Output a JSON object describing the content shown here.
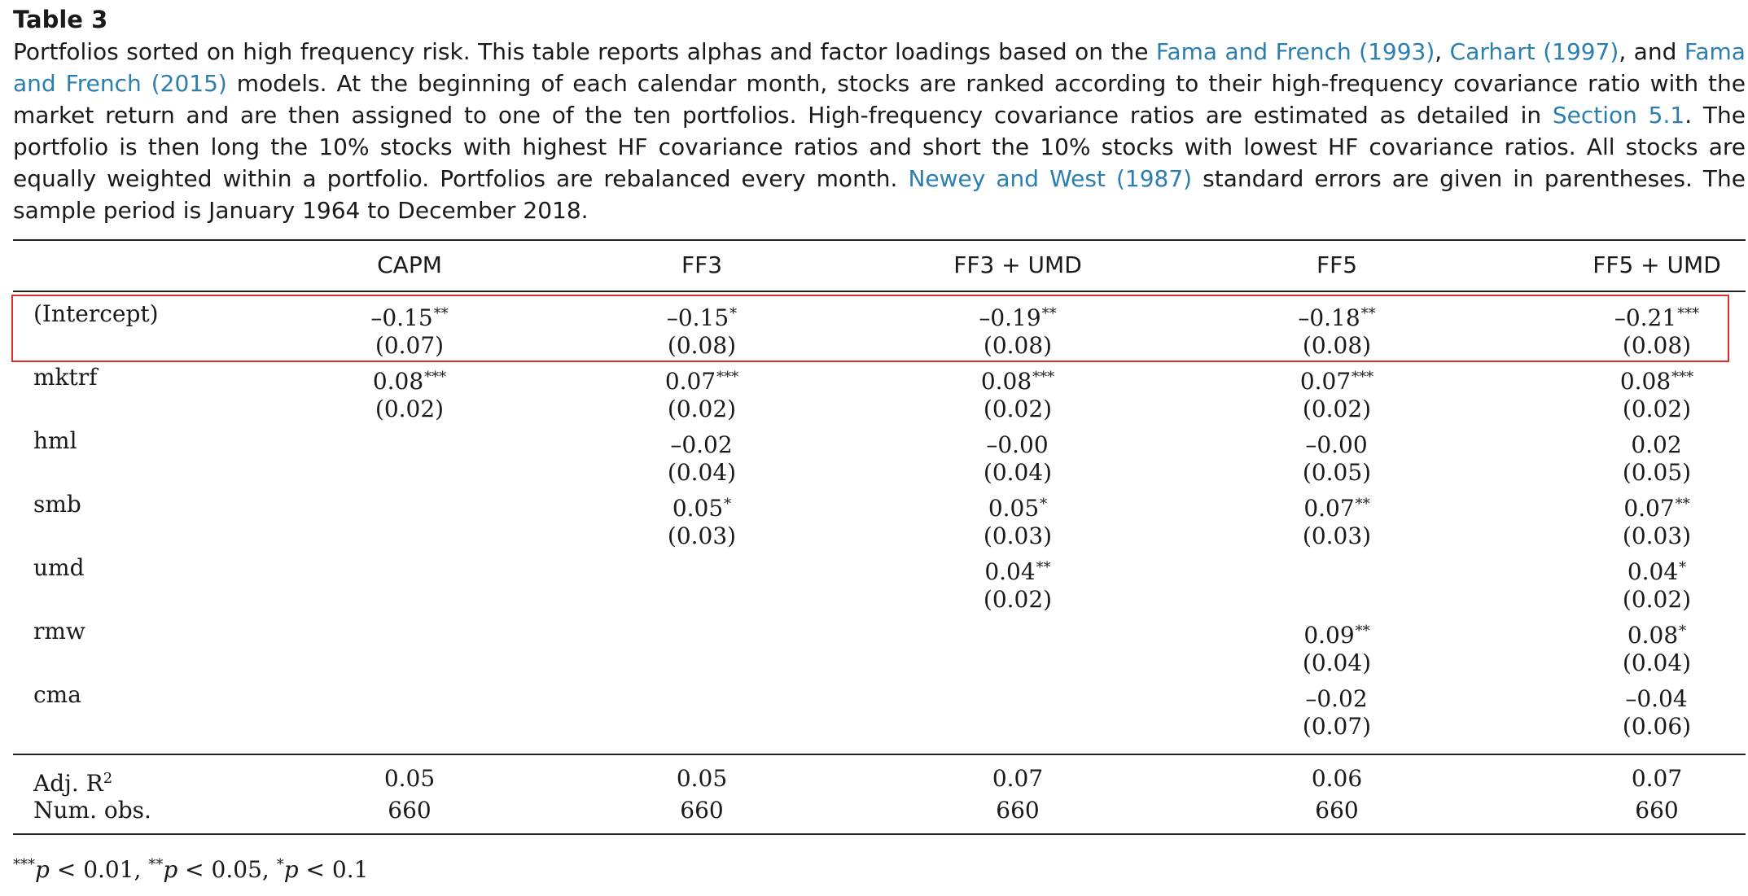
{
  "title": "Table 3",
  "caption": {
    "t1": "Portfolios sorted on high frequency risk. This table reports alphas and factor loadings based on the ",
    "l1": "Fama and French (1993)",
    "t2": ", ",
    "l2": "Carhart (1997)",
    "t3": ", and ",
    "l3": "Fama and French (2015)",
    "t4": " models. At the beginning of each calendar month, stocks are ranked according to their high-frequency covariance ratio with the market return and are then assigned to one of the ten portfolios. High-frequency covariance ratios are estimated as detailed in ",
    "l4": "Section 5.1",
    "t5": ". The portfolio is then long the 10% stocks with highest HF covariance ratios and short the 10% stocks with lowest HF covariance ratios. All stocks are equally weighted within a portfolio. Portfolios are rebalanced every month. ",
    "l5": "Newey and West (1987)",
    "t6": " standard errors are given in parentheses. The sample period is January 1964 to December 2018."
  },
  "columns": [
    "CAPM",
    "FF3",
    "FF3 + UMD",
    "FF5",
    "FF5 + UMD"
  ],
  "rows": [
    {
      "label": "(Intercept)",
      "est": [
        [
          "–0.15",
          "**"
        ],
        [
          "–0.15",
          "*"
        ],
        [
          "–0.19",
          "**"
        ],
        [
          "–0.18",
          "**"
        ],
        [
          "–0.21",
          "***"
        ]
      ],
      "se": [
        "(0.07)",
        "(0.08)",
        "(0.08)",
        "(0.08)",
        "(0.08)"
      ]
    },
    {
      "label": "mktrf",
      "est": [
        [
          "0.08",
          "***"
        ],
        [
          "0.07",
          "***"
        ],
        [
          "0.08",
          "***"
        ],
        [
          "0.07",
          "***"
        ],
        [
          "0.08",
          "***"
        ]
      ],
      "se": [
        "(0.02)",
        "(0.02)",
        "(0.02)",
        "(0.02)",
        "(0.02)"
      ]
    },
    {
      "label": "hml",
      "est": [
        [
          "",
          ""
        ],
        [
          "–0.02",
          ""
        ],
        [
          "–0.00",
          ""
        ],
        [
          "–0.00",
          ""
        ],
        [
          "0.02",
          ""
        ]
      ],
      "se": [
        "",
        "(0.04)",
        "(0.04)",
        "(0.05)",
        "(0.05)"
      ]
    },
    {
      "label": "smb",
      "est": [
        [
          "",
          ""
        ],
        [
          "0.05",
          "*"
        ],
        [
          "0.05",
          "*"
        ],
        [
          "0.07",
          "**"
        ],
        [
          "0.07",
          "**"
        ]
      ],
      "se": [
        "",
        "(0.03)",
        "(0.03)",
        "(0.03)",
        "(0.03)"
      ]
    },
    {
      "label": "umd",
      "est": [
        [
          "",
          ""
        ],
        [
          "",
          ""
        ],
        [
          "0.04",
          "**"
        ],
        [
          "",
          ""
        ],
        [
          "0.04",
          "*"
        ]
      ],
      "se": [
        "",
        "",
        "(0.02)",
        "",
        "(0.02)"
      ]
    },
    {
      "label": "rmw",
      "est": [
        [
          "",
          ""
        ],
        [
          "",
          ""
        ],
        [
          "",
          ""
        ],
        [
          "0.09",
          "**"
        ],
        [
          "0.08",
          "*"
        ]
      ],
      "se": [
        "",
        "",
        "",
        "(0.04)",
        "(0.04)"
      ]
    },
    {
      "label": "cma",
      "est": [
        [
          "",
          ""
        ],
        [
          "",
          ""
        ],
        [
          "",
          ""
        ],
        [
          "–0.02",
          ""
        ],
        [
          "–0.04",
          ""
        ]
      ],
      "se": [
        "",
        "",
        "",
        "(0.07)",
        "(0.06)"
      ]
    }
  ],
  "summary": [
    {
      "label": "Adj. R",
      "sup": "2",
      "values": [
        "0.05",
        "0.05",
        "0.07",
        "0.06",
        "0.07"
      ]
    },
    {
      "label": "Num. obs.",
      "sup": "",
      "values": [
        "660",
        "660",
        "660",
        "660",
        "660"
      ]
    }
  ],
  "footnote": {
    "s1": "***",
    "p1": "p",
    "v1": " < 0.01, ",
    "s2": "**",
    "p2": "p",
    "v2": " < 0.05, ",
    "s3": "*",
    "p3": "p",
    "v3": " < 0.1"
  }
}
